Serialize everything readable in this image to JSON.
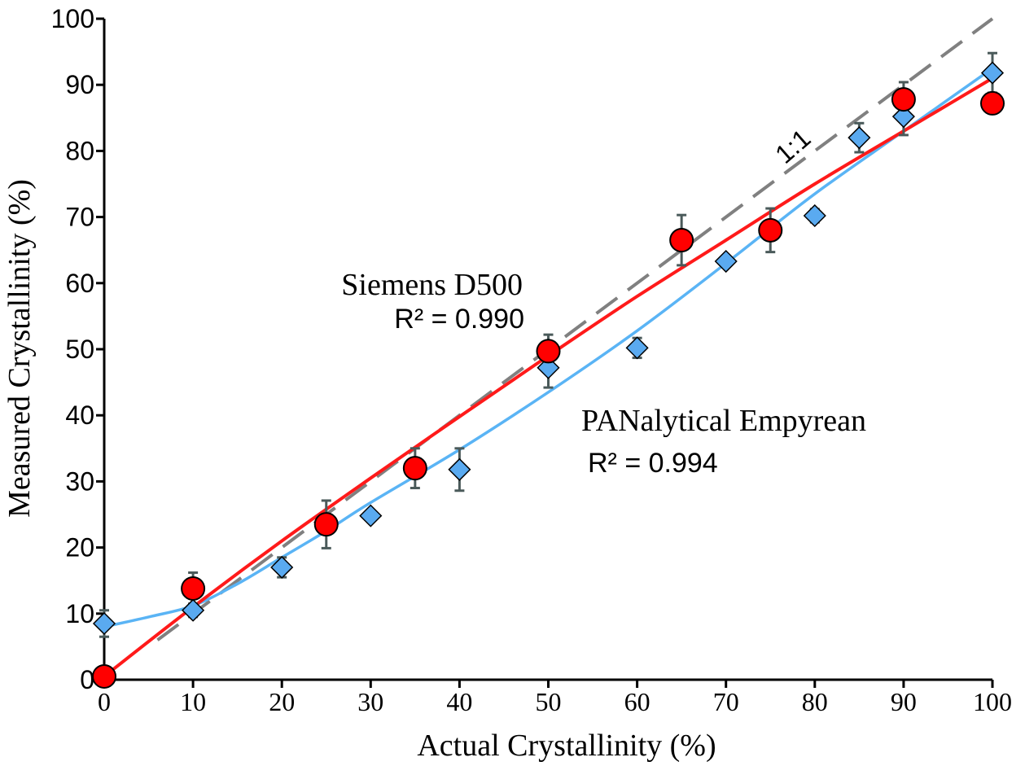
{
  "chart_data": {
    "type": "scatter",
    "title": "",
    "xlabel": "Actual Crystallinity (%)",
    "ylabel": "Measured Crystallinity (%)",
    "xlim": [
      0,
      100
    ],
    "ylim": [
      0,
      100
    ],
    "x_ticks": [
      "0",
      "10",
      "20",
      "30",
      "40",
      "50",
      "60",
      "70",
      "80",
      "90",
      "100"
    ],
    "y_ticks": [
      "0",
      "10",
      "20",
      "30",
      "40",
      "50",
      "60",
      "70",
      "80",
      "90",
      "100"
    ],
    "grid": false,
    "reference_line": {
      "label": "1:1",
      "color": "#808080",
      "x": [
        6,
        100
      ],
      "y": [
        6,
        100
      ]
    },
    "series": [
      {
        "name": "Siemens D500",
        "r2_text": "R² = 0.990",
        "marker": "circle",
        "color": "#ff0000",
        "line_color": "#ff1a1a",
        "x": [
          0,
          10,
          25,
          35,
          50,
          65,
          75,
          90,
          100
        ],
        "y": [
          0.5,
          13.8,
          23.5,
          32.0,
          49.7,
          66.5,
          68.0,
          87.8,
          87.2
        ],
        "error": [
          0,
          2.4,
          3.6,
          3.0,
          2.5,
          3.8,
          3.3,
          2.6,
          0
        ],
        "fit_x": [
          0,
          10,
          20,
          30,
          40,
          50,
          60,
          70,
          80,
          90,
          100
        ],
        "fit_y": [
          0.5,
          11.0,
          21.0,
          30.5,
          39.8,
          49.0,
          58.0,
          66.5,
          75.0,
          83.0,
          91.0
        ]
      },
      {
        "name": "PANalytical Empyrean",
        "r2_text": "R² = 0.994",
        "marker": "diamond",
        "color": "#5aaaf0",
        "line_color": "#5ab4f5",
        "x": [
          0,
          10,
          20,
          30,
          40,
          50,
          60,
          70,
          80,
          85,
          90,
          100
        ],
        "y": [
          8.5,
          10.5,
          17.0,
          24.8,
          31.8,
          47.2,
          50.2,
          63.3,
          70.2,
          82.0,
          85.2,
          91.8
        ],
        "error": [
          2.0,
          1.0,
          1.5,
          0,
          3.2,
          3.0,
          1.5,
          0,
          1.0,
          2.2,
          2.8,
          3.0
        ],
        "fit_x": [
          0,
          5,
          10,
          15,
          20,
          25,
          30,
          40,
          50,
          60,
          70,
          80,
          90,
          100
        ],
        "fit_y": [
          8.0,
          9.5,
          11.2,
          14.5,
          18.5,
          22.5,
          26.8,
          34.8,
          43.5,
          52.8,
          63.0,
          73.5,
          83.0,
          92.5
        ]
      }
    ]
  }
}
